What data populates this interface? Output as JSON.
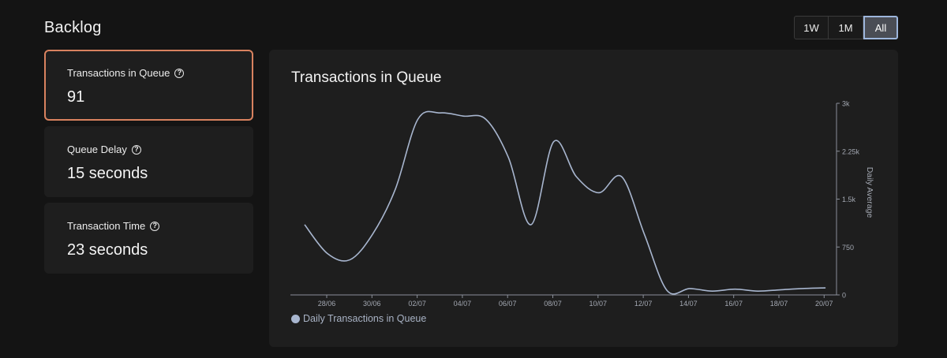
{
  "page": {
    "title": "Backlog"
  },
  "range_buttons": [
    {
      "label": "1W",
      "active": false
    },
    {
      "label": "1M",
      "active": false
    },
    {
      "label": "All",
      "active": true
    }
  ],
  "cards": [
    {
      "label": "Transactions in Queue",
      "value": "91",
      "selected": true
    },
    {
      "label": "Queue Delay",
      "value": "15 seconds",
      "selected": false
    },
    {
      "label": "Transaction Time",
      "value": "23 seconds",
      "selected": false
    }
  ],
  "colors": {
    "line": "#a8b6cf",
    "selected_border": "#d9825f",
    "active_button_border": "#9db6dc"
  },
  "chart_data": {
    "type": "line",
    "title": "Transactions in Queue",
    "ylabel": "Daily Average",
    "y_axis_position": "right",
    "ylim": [
      0,
      3000
    ],
    "y_ticks": [
      0,
      750,
      1500,
      2250,
      3000
    ],
    "y_tick_labels": [
      "0",
      "750",
      "1.5k",
      "2.25k",
      "3k"
    ],
    "x_tick_labels": [
      "28/06",
      "30/06",
      "02/07",
      "04/07",
      "06/07",
      "08/07",
      "10/07",
      "12/07",
      "14/07",
      "16/07",
      "18/07",
      "20/07"
    ],
    "legend": "bottom-left",
    "grid": false,
    "series": [
      {
        "name": "Daily Transactions in Queue",
        "x": [
          "27/06",
          "28/06",
          "29/06",
          "30/06",
          "01/07",
          "02/07",
          "03/07",
          "04/07",
          "05/07",
          "06/07",
          "07/07",
          "08/07",
          "09/07",
          "10/07",
          "11/07",
          "12/07",
          "13/07",
          "14/07",
          "15/07",
          "16/07",
          "17/07",
          "18/07",
          "19/07",
          "20/07"
        ],
        "values": [
          1100,
          650,
          550,
          950,
          1650,
          2750,
          2850,
          2800,
          2750,
          2150,
          1100,
          2400,
          1850,
          1600,
          1850,
          950,
          70,
          100,
          60,
          90,
          60,
          80,
          100,
          110
        ]
      }
    ]
  }
}
